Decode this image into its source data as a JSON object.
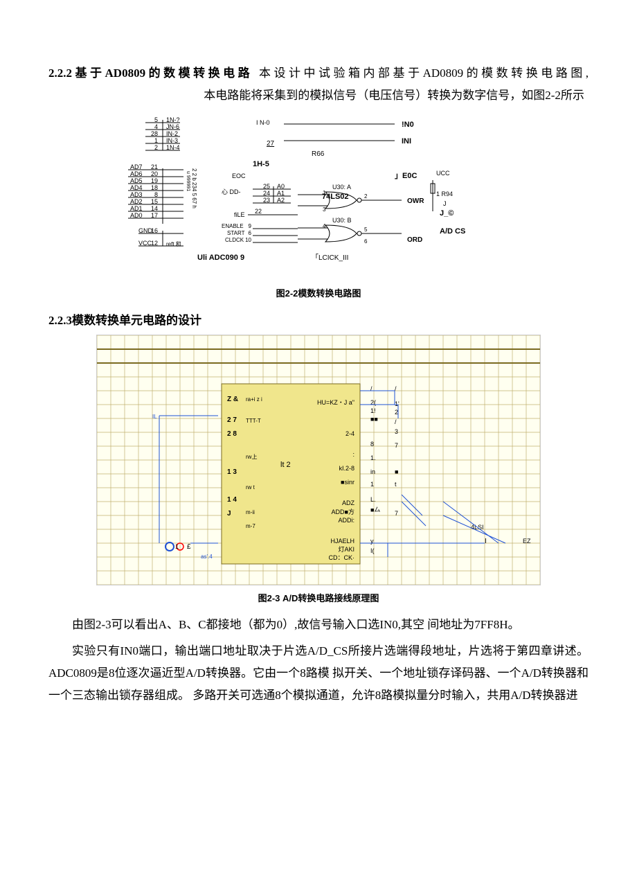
{
  "s222": {
    "heading": "2.2.2基于AD0809的数模转换电路",
    "body_a": " 本设计中试验箱内部基于AD0809的模数转换电路图,",
    "body_b": "本电路能将采集到的模拟信号（电压信号）转换为数字信号，如图2-2所示"
  },
  "fig22": {
    "caption": "图2-2模数转换电路图",
    "chip_label": "Uli ADC090 9",
    "chip2_label": "74LS02",
    "clock_label": "「LCICK_III",
    "left_top_pins": [
      {
        "pin": "5",
        "label": "1N-?"
      },
      {
        "pin": "4",
        "label": "JN-6"
      },
      {
        "pin": "28",
        "label": "IN-2"
      },
      {
        "pin": "1",
        "label": "IN-3"
      },
      {
        "pin": "2",
        "label": "1N-4"
      }
    ],
    "left_mid": [
      {
        "pin": "21",
        "net": "AD7"
      },
      {
        "pin": "20",
        "net": "AD6"
      },
      {
        "pin": "19",
        "net": "AD5"
      },
      {
        "pin": "18",
        "net": "AD4"
      },
      {
        "pin": "8",
        "net": "AD3"
      },
      {
        "pin": "15",
        "net": "AD2"
      },
      {
        "pin": "14",
        "net": "AD1"
      },
      {
        "pin": "17",
        "net": "AD0"
      }
    ],
    "left_bot": [
      {
        "pin": "16",
        "net": "GND"
      },
      {
        "pin": "12",
        "net": "VCC"
      }
    ],
    "col_nums": "2 2 b 234 5 67 h",
    "side_nums": "u  999991",
    "reft": "reft 和",
    "top_in0": "I N-0",
    "top_in5": "1H-5",
    "top_27": "27",
    "eoc": "EOC",
    "dd": "心 DD-",
    "addr": [
      {
        "pin": "25",
        "label": "A0"
      },
      {
        "pin": "24",
        "label": "A1"
      },
      {
        "pin": "23",
        "label": "A2"
      }
    ],
    "ale": "fiLE",
    "ale_pin": "22",
    "low": [
      {
        "pin": "9",
        "label": "ENABLE"
      },
      {
        "pin": "6",
        "label": "START"
      },
      {
        "pin": "10",
        "label": "CLDCK"
      }
    ],
    "r66": "R66",
    "right_in0": "!N0",
    "right_ini": "INI",
    "right_eoc": "」E0C",
    "right_ucc": "UCC",
    "right_r94": "1 R94",
    "right_j": "J",
    "right_jc": "J_©",
    "right_owr": "OWR",
    "right_ord": "ORD",
    "right_adcs": "A/D CS",
    "u30a": "U30: A",
    "u30b": "U30: B",
    "gate_pins": [
      "1",
      "2",
      "3",
      "4",
      "5",
      "6"
    ],
    "colors": {
      "line": "#000000",
      "text": "#000000",
      "bg": "#ffffff"
    }
  },
  "s223": {
    "heading": "2.2.3模数转换单元电路的设计"
  },
  "fig23": {
    "caption": "图2-3 A/D转换电路接线原理图",
    "grid": {
      "bg": "#fffff0",
      "line": "#c0b070",
      "line2": "#d7cfa0"
    },
    "chip_fill": "#f0e68c",
    "blue": "#1e50d4",
    "red": "#ff0000",
    "labels_left": [
      "Z &",
      "2 7",
      "2 8",
      "1 3",
      "1 4",
      "J"
    ],
    "labels_left_sub": [
      "ra+i z i",
      "TTT-T",
      "rw上",
      "rw  t",
      "m-ii",
      "m-7"
    ],
    "labels_center": [
      "lt 2"
    ],
    "labels_right_in": [
      "HU=KZ・J a\"",
      "2-4",
      ":",
      "kI.2-8",
      "■sinr",
      "ADZ",
      "ADD■方",
      "ADDi:",
      "HJAELH",
      "灯AKI",
      "CD：CK·"
    ],
    "labels_right_out": [
      "/",
      "2(",
      "1!",
      "■■",
      "8",
      "1.",
      "in",
      "1",
      "L.",
      "■厶",
      "y",
      "I("
    ],
    "labels_right_out2": [
      "/",
      "1'",
      "2",
      "/",
      "3",
      "7",
      "■",
      "t",
      "7"
    ],
    "labels_far": [
      "4LSI",
      "I",
      "EZ"
    ],
    "labels_bl": [
      "O",
      "1",
      "£",
      "as'.4",
      " "
    ]
  },
  "tail": {
    "p1": "由图2-3可以看出A、B、C都接地（都为0）,故信号输入口选IN0,其空 间地址为7FF8H。",
    "p2": "实验只有IN0端口，输出端口地址取决于片选A/D_CS所接片选端得段地址，片选将于第四章讲述。ADC0809是8位逐次逼近型A/D转换器。它由一个8路模 拟开关、一个地址锁存译码器、一个A/D转换器和一个三态输出锁存器组成。 多路开关可选通8个模拟通道，允许8路模拟量分时输入，共用A/D转换器进"
  }
}
